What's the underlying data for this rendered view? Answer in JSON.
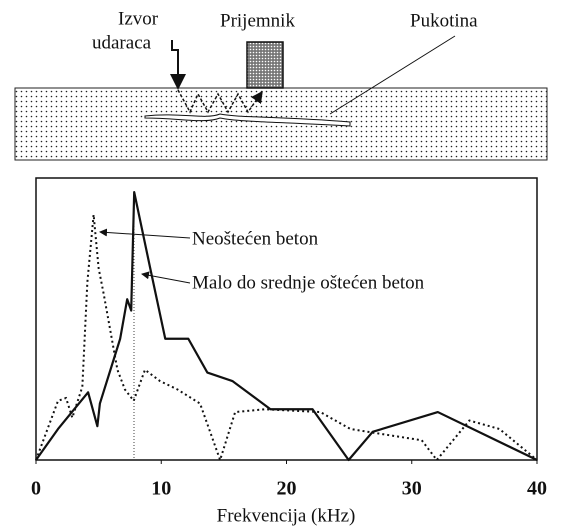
{
  "diagram": {
    "source_label": [
      "Izvor",
      "udaraca"
    ],
    "receiver_label": "Prijemnik",
    "crack_label": "Pukotina"
  },
  "chart_data": {
    "type": "line",
    "x_label": "Frekvencija (kHz)",
    "xlim": [
      0,
      40
    ],
    "xticks": [
      0,
      10,
      20,
      30,
      40
    ],
    "ylim": [
      0,
      1
    ],
    "series": [
      {
        "name": "Neoštećen beton",
        "color": "#111111",
        "style": "dotted",
        "x": [
          0,
          1.76,
          2.4,
          2.9,
          3.7,
          4.1,
          4.6,
          5.0,
          5.4,
          6.5,
          7.1,
          7.8,
          8.7,
          9.9,
          11.3,
          13.1,
          14.7,
          15.9,
          18.3,
          22.7,
          25.1,
          27.9,
          30.8,
          32,
          34.6,
          37,
          40
        ],
        "values": [
          0,
          0.21,
          0.22,
          0.15,
          0.26,
          0.63,
          0.87,
          0.68,
          0.59,
          0.32,
          0.25,
          0.21,
          0.32,
          0.28,
          0.25,
          0.2,
          0,
          0.17,
          0.18,
          0.17,
          0.11,
          0.09,
          0.07,
          0,
          0.14,
          0.11,
          0
        ]
      },
      {
        "name": "Malo do srednje oštećen beton",
        "color": "#111111",
        "style": "solid",
        "x": [
          0,
          1.76,
          4.16,
          4.9,
          5.1,
          6.72,
          7.28,
          7.6,
          7.84,
          9.12,
          10.32,
          12.16,
          13.68,
          15.68,
          18.72,
          22.08,
          24.96,
          26.88,
          32.08,
          40
        ],
        "values": [
          0,
          0.11,
          0.24,
          0.12,
          0.2,
          0.43,
          0.57,
          0.53,
          0.95,
          0.68,
          0.43,
          0.43,
          0.31,
          0.28,
          0.18,
          0.18,
          0,
          0.1,
          0.17,
          0
        ]
      }
    ]
  }
}
